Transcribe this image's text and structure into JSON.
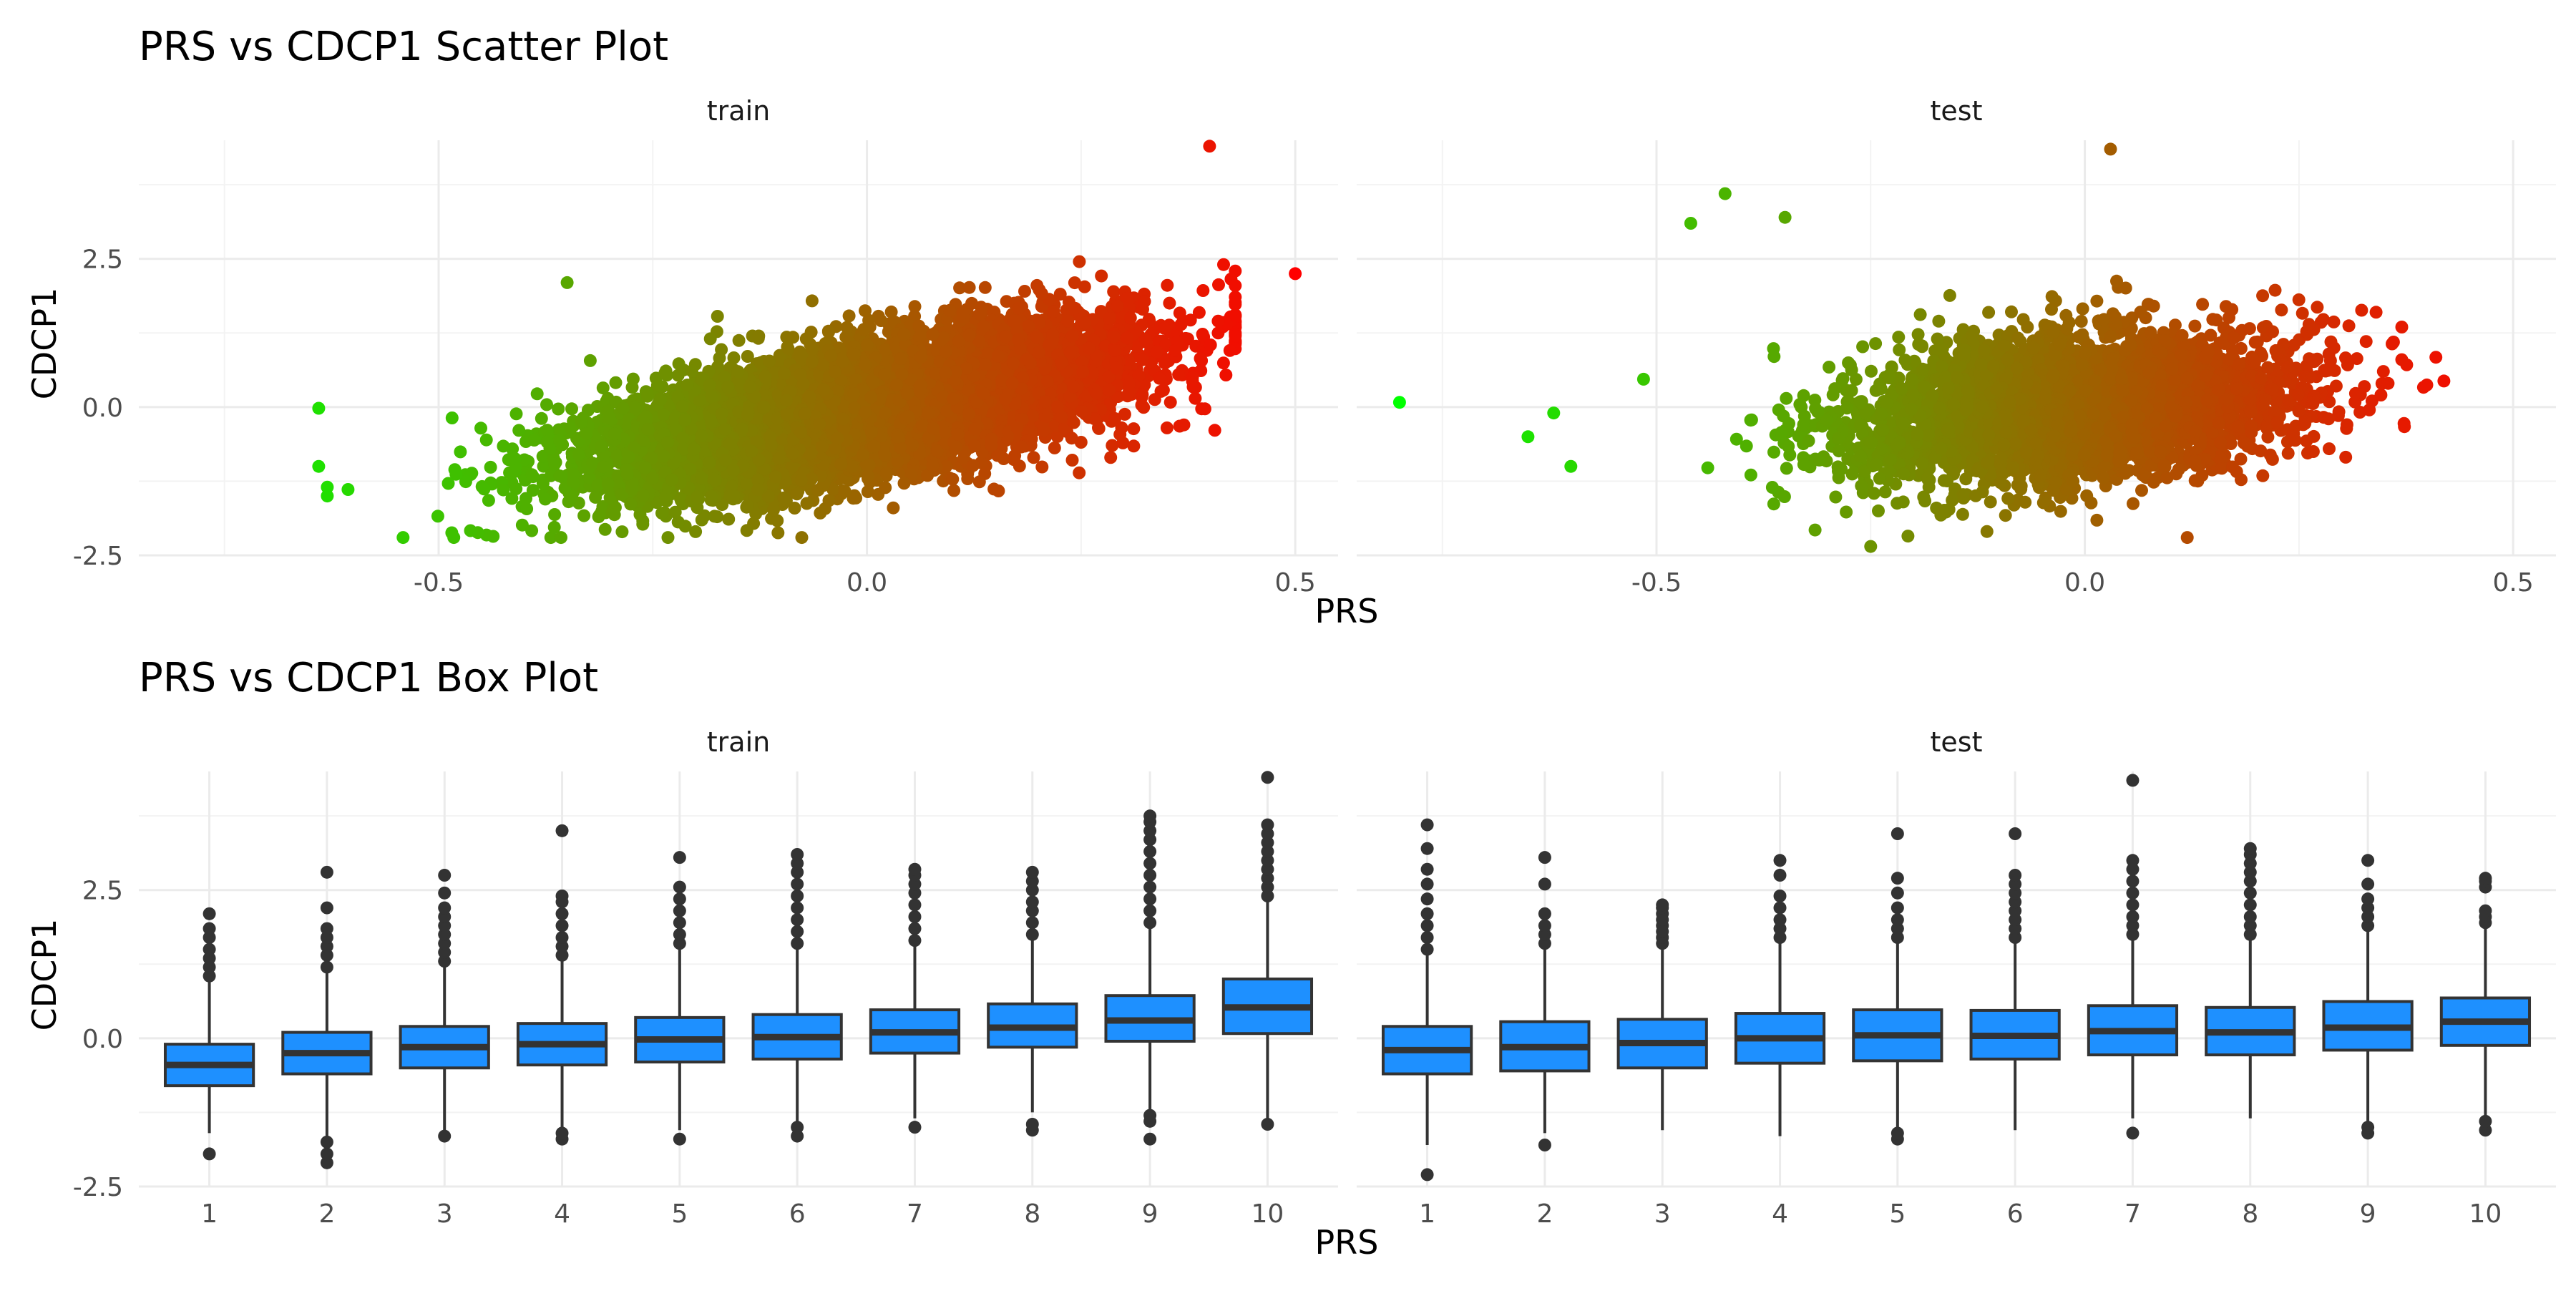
{
  "chart_data": [
    {
      "type": "scatter",
      "title": "PRS vs CDCP1 Scatter Plot",
      "xlabel": "PRS",
      "ylabel": "CDCP1",
      "xlim": [
        -0.85,
        0.55
      ],
      "ylim": [
        -2.5,
        4.5
      ],
      "x_ticks": [
        "-0.5",
        "0.0",
        "0.5"
      ],
      "y_ticks": [
        "-2.5",
        "0.0",
        "2.5"
      ],
      "color_scale": {
        "low": "#00ff00",
        "high": "#ff0000",
        "by": "PRS"
      },
      "grid": true,
      "panels": [
        {
          "strip": "train",
          "n_points": 9000,
          "x_mean": 0.0,
          "x_sd": 0.15,
          "slope": 2.7,
          "resid_sd": 0.52,
          "outliers": [
            {
              "x": 0.5,
              "y": 2.25
            },
            {
              "x": 0.4,
              "y": 4.4
            },
            {
              "x": 0.42,
              "y": 1.4
            },
            {
              "x": 0.41,
              "y": 1.45
            },
            {
              "x": -0.64,
              "y": -0.02
            },
            {
              "x": -0.63,
              "y": -1.5
            },
            {
              "x": -0.63,
              "y": -1.35
            },
            {
              "x": -0.64,
              "y": -1.0
            },
            {
              "x": -0.35,
              "y": 2.1
            },
            {
              "x": -0.2,
              "y": -2.1
            },
            {
              "x": 0.38,
              "y": 0.5
            },
            {
              "x": 0.37,
              "y": -0.3
            }
          ]
        },
        {
          "strip": "test",
          "n_points": 4000,
          "x_mean": -0.02,
          "x_sd": 0.13,
          "slope": 1.2,
          "resid_sd": 0.6,
          "outliers": [
            {
              "x": -0.8,
              "y": 0.08
            },
            {
              "x": 0.03,
              "y": 4.35
            },
            {
              "x": -0.42,
              "y": 3.6
            },
            {
              "x": -0.46,
              "y": 3.1
            },
            {
              "x": -0.25,
              "y": -2.35
            },
            {
              "x": -0.65,
              "y": -0.5
            },
            {
              "x": -0.62,
              "y": -0.1
            },
            {
              "x": -0.6,
              "y": -1.0
            },
            {
              "x": 0.37,
              "y": 0.8
            },
            {
              "x": 0.37,
              "y": 1.35
            },
            {
              "x": 0.34,
              "y": 1.6
            },
            {
              "x": -0.35,
              "y": 3.2
            }
          ]
        }
      ]
    },
    {
      "type": "box",
      "title": "PRS vs CDCP1 Box Plot",
      "xlabel": "PRS",
      "ylabel": "CDCP1",
      "ylim": [
        -2.5,
        4.5
      ],
      "y_ticks": [
        "-2.5",
        "0.0",
        "2.5"
      ],
      "categories": [
        "1",
        "2",
        "3",
        "4",
        "5",
        "6",
        "7",
        "8",
        "9",
        "10"
      ],
      "box_fill": "#1e90ff",
      "line_color": "#333333",
      "panels": [
        {
          "strip": "train",
          "boxes": [
            {
              "q1": -0.8,
              "median": -0.45,
              "q3": -0.1,
              "lower": -1.6,
              "upper": 1.0,
              "outliers": [
                -1.95,
                1.05,
                1.2,
                1.35,
                1.5,
                1.7,
                1.85,
                2.1
              ]
            },
            {
              "q1": -0.6,
              "median": -0.25,
              "q3": 0.1,
              "lower": -1.65,
              "upper": 1.1,
              "outliers": [
                -2.1,
                -1.95,
                -1.75,
                1.2,
                1.4,
                1.55,
                1.7,
                1.85,
                2.2,
                2.8
              ]
            },
            {
              "q1": -0.5,
              "median": -0.15,
              "q3": 0.2,
              "lower": -1.6,
              "upper": 1.25,
              "outliers": [
                -1.65,
                1.3,
                1.45,
                1.6,
                1.75,
                1.9,
                2.05,
                2.2,
                2.45,
                2.75
              ]
            },
            {
              "q1": -0.45,
              "median": -0.1,
              "q3": 0.25,
              "lower": -1.55,
              "upper": 1.35,
              "outliers": [
                -1.7,
                -1.6,
                1.4,
                1.55,
                1.7,
                1.9,
                2.1,
                2.3,
                2.4,
                3.5
              ]
            },
            {
              "q1": -0.4,
              "median": -0.02,
              "q3": 0.35,
              "lower": -1.55,
              "upper": 1.5,
              "outliers": [
                -1.7,
                1.6,
                1.75,
                1.95,
                2.15,
                2.35,
                2.55,
                3.05
              ]
            },
            {
              "q1": -0.35,
              "median": 0.02,
              "q3": 0.4,
              "lower": -1.45,
              "upper": 1.55,
              "outliers": [
                -1.65,
                -1.5,
                1.6,
                1.8,
                2.0,
                2.2,
                2.4,
                2.6,
                2.8,
                2.95,
                3.1
              ]
            },
            {
              "q1": -0.25,
              "median": 0.1,
              "q3": 0.48,
              "lower": -1.35,
              "upper": 1.6,
              "outliers": [
                -1.5,
                1.65,
                1.85,
                2.05,
                2.25,
                2.45,
                2.6,
                2.75,
                2.85
              ]
            },
            {
              "q1": -0.15,
              "median": 0.18,
              "q3": 0.58,
              "lower": -1.25,
              "upper": 1.7,
              "outliers": [
                -1.55,
                -1.45,
                1.75,
                1.95,
                2.15,
                2.3,
                2.5,
                2.65,
                2.8
              ]
            },
            {
              "q1": -0.05,
              "median": 0.3,
              "q3": 0.72,
              "lower": -1.2,
              "upper": 1.9,
              "outliers": [
                -1.7,
                -1.4,
                -1.3,
                1.95,
                2.15,
                2.35,
                2.55,
                2.75,
                2.95,
                3.15,
                3.35,
                3.5,
                3.65,
                3.75
              ]
            },
            {
              "q1": 0.08,
              "median": 0.52,
              "q3": 1.0,
              "lower": -1.35,
              "upper": 2.35,
              "outliers": [
                -1.45,
                2.4,
                2.55,
                2.7,
                2.85,
                3.0,
                3.15,
                3.3,
                3.45,
                3.6,
                4.4
              ]
            }
          ]
        },
        {
          "strip": "test",
          "boxes": [
            {
              "q1": -0.6,
              "median": -0.2,
              "q3": 0.2,
              "lower": -1.8,
              "upper": 1.4,
              "outliers": [
                -2.3,
                1.5,
                1.7,
                1.9,
                2.1,
                2.35,
                2.6,
                2.85,
                3.2,
                3.6
              ]
            },
            {
              "q1": -0.55,
              "median": -0.15,
              "q3": 0.28,
              "lower": -1.6,
              "upper": 1.5,
              "outliers": [
                -1.8,
                1.6,
                1.75,
                1.9,
                2.1,
                2.6,
                3.05
              ]
            },
            {
              "q1": -0.5,
              "median": -0.08,
              "q3": 0.32,
              "lower": -1.55,
              "upper": 1.55,
              "outliers": [
                1.6,
                1.7,
                1.8,
                1.9,
                2.0,
                2.1,
                2.2,
                2.25
              ]
            },
            {
              "q1": -0.42,
              "median": 0.0,
              "q3": 0.42,
              "lower": -1.65,
              "upper": 1.6,
              "outliers": [
                1.7,
                1.85,
                2.0,
                2.2,
                2.4,
                2.75,
                3.0
              ]
            },
            {
              "q1": -0.38,
              "median": 0.05,
              "q3": 0.48,
              "lower": -1.55,
              "upper": 1.6,
              "outliers": [
                -1.7,
                -1.6,
                1.7,
                1.85,
                2.0,
                2.2,
                2.45,
                2.7,
                3.45
              ]
            },
            {
              "q1": -0.35,
              "median": 0.04,
              "q3": 0.47,
              "lower": -1.55,
              "upper": 1.6,
              "outliers": [
                1.7,
                1.85,
                2.0,
                2.15,
                2.3,
                2.45,
                2.6,
                2.75,
                3.45
              ]
            },
            {
              "q1": -0.28,
              "median": 0.12,
              "q3": 0.55,
              "lower": -1.35,
              "upper": 1.7,
              "outliers": [
                -1.6,
                1.75,
                1.9,
                2.05,
                2.25,
                2.45,
                2.65,
                2.85,
                3.0,
                4.35
              ]
            },
            {
              "q1": -0.28,
              "median": 0.1,
              "q3": 0.52,
              "lower": -1.35,
              "upper": 1.7,
              "outliers": [
                1.75,
                1.9,
                2.05,
                2.25,
                2.45,
                2.65,
                2.8,
                2.95,
                3.1,
                3.2
              ]
            },
            {
              "q1": -0.2,
              "median": 0.18,
              "q3": 0.62,
              "lower": -1.45,
              "upper": 1.8,
              "outliers": [
                -1.6,
                -1.5,
                1.9,
                2.05,
                2.2,
                2.35,
                2.6,
                3.0
              ]
            },
            {
              "q1": -0.12,
              "median": 0.28,
              "q3": 0.68,
              "lower": -1.3,
              "upper": 1.85,
              "outliers": [
                -1.55,
                -1.4,
                1.95,
                2.05,
                2.15,
                2.55,
                2.65,
                2.7
              ]
            }
          ]
        }
      ]
    }
  ]
}
